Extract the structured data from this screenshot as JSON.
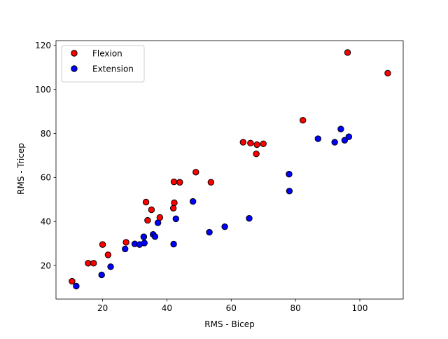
{
  "chart_data": {
    "type": "scatter",
    "title": "",
    "xlabel": "RMS - Bicep",
    "ylabel": "RMS - Tricep",
    "xlim": [
      5.5,
      113.5
    ],
    "ylim": [
      4.7,
      122.2
    ],
    "xticks": [
      20,
      40,
      60,
      80,
      100
    ],
    "yticks": [
      20,
      40,
      60,
      80,
      100,
      120
    ],
    "grid": false,
    "legend_position": "upper-left",
    "series": [
      {
        "name": "Flexion",
        "color": "#ff0000",
        "edge_color": "#000000",
        "points": [
          [
            10.5,
            12.8
          ],
          [
            15.5,
            21.0
          ],
          [
            17.2,
            21.0
          ],
          [
            20.0,
            29.5
          ],
          [
            21.7,
            24.8
          ],
          [
            27.3,
            30.5
          ],
          [
            33.5,
            48.8
          ],
          [
            34.0,
            40.5
          ],
          [
            35.2,
            45.3
          ],
          [
            37.8,
            41.8
          ],
          [
            42.0,
            46.0
          ],
          [
            42.2,
            58.0
          ],
          [
            42.3,
            48.5
          ],
          [
            44.0,
            57.8
          ],
          [
            49.0,
            62.4
          ],
          [
            53.7,
            57.8
          ],
          [
            63.7,
            76.0
          ],
          [
            66.0,
            75.6
          ],
          [
            67.8,
            70.7
          ],
          [
            68.0,
            74.9
          ],
          [
            70.0,
            75.3
          ],
          [
            82.3,
            86.0
          ],
          [
            96.2,
            116.8
          ],
          [
            108.7,
            107.4
          ]
        ]
      },
      {
        "name": "Extension",
        "color": "#0000ff",
        "edge_color": "#000000",
        "points": [
          [
            11.8,
            10.6
          ],
          [
            19.7,
            15.7
          ],
          [
            22.5,
            19.4
          ],
          [
            27.0,
            27.5
          ],
          [
            30.0,
            29.8
          ],
          [
            31.5,
            29.5
          ],
          [
            32.8,
            33.0
          ],
          [
            33.0,
            30.2
          ],
          [
            35.7,
            34.1
          ],
          [
            36.3,
            33.1
          ],
          [
            37.2,
            39.4
          ],
          [
            42.1,
            29.7
          ],
          [
            42.8,
            41.2
          ],
          [
            48.1,
            49.1
          ],
          [
            53.2,
            35.1
          ],
          [
            58.0,
            37.6
          ],
          [
            65.6,
            41.4
          ],
          [
            78.0,
            61.5
          ],
          [
            78.1,
            53.8
          ],
          [
            87.0,
            77.6
          ],
          [
            92.2,
            76.0
          ],
          [
            94.1,
            82.0
          ],
          [
            95.3,
            76.9
          ],
          [
            96.6,
            78.5
          ]
        ]
      }
    ]
  }
}
